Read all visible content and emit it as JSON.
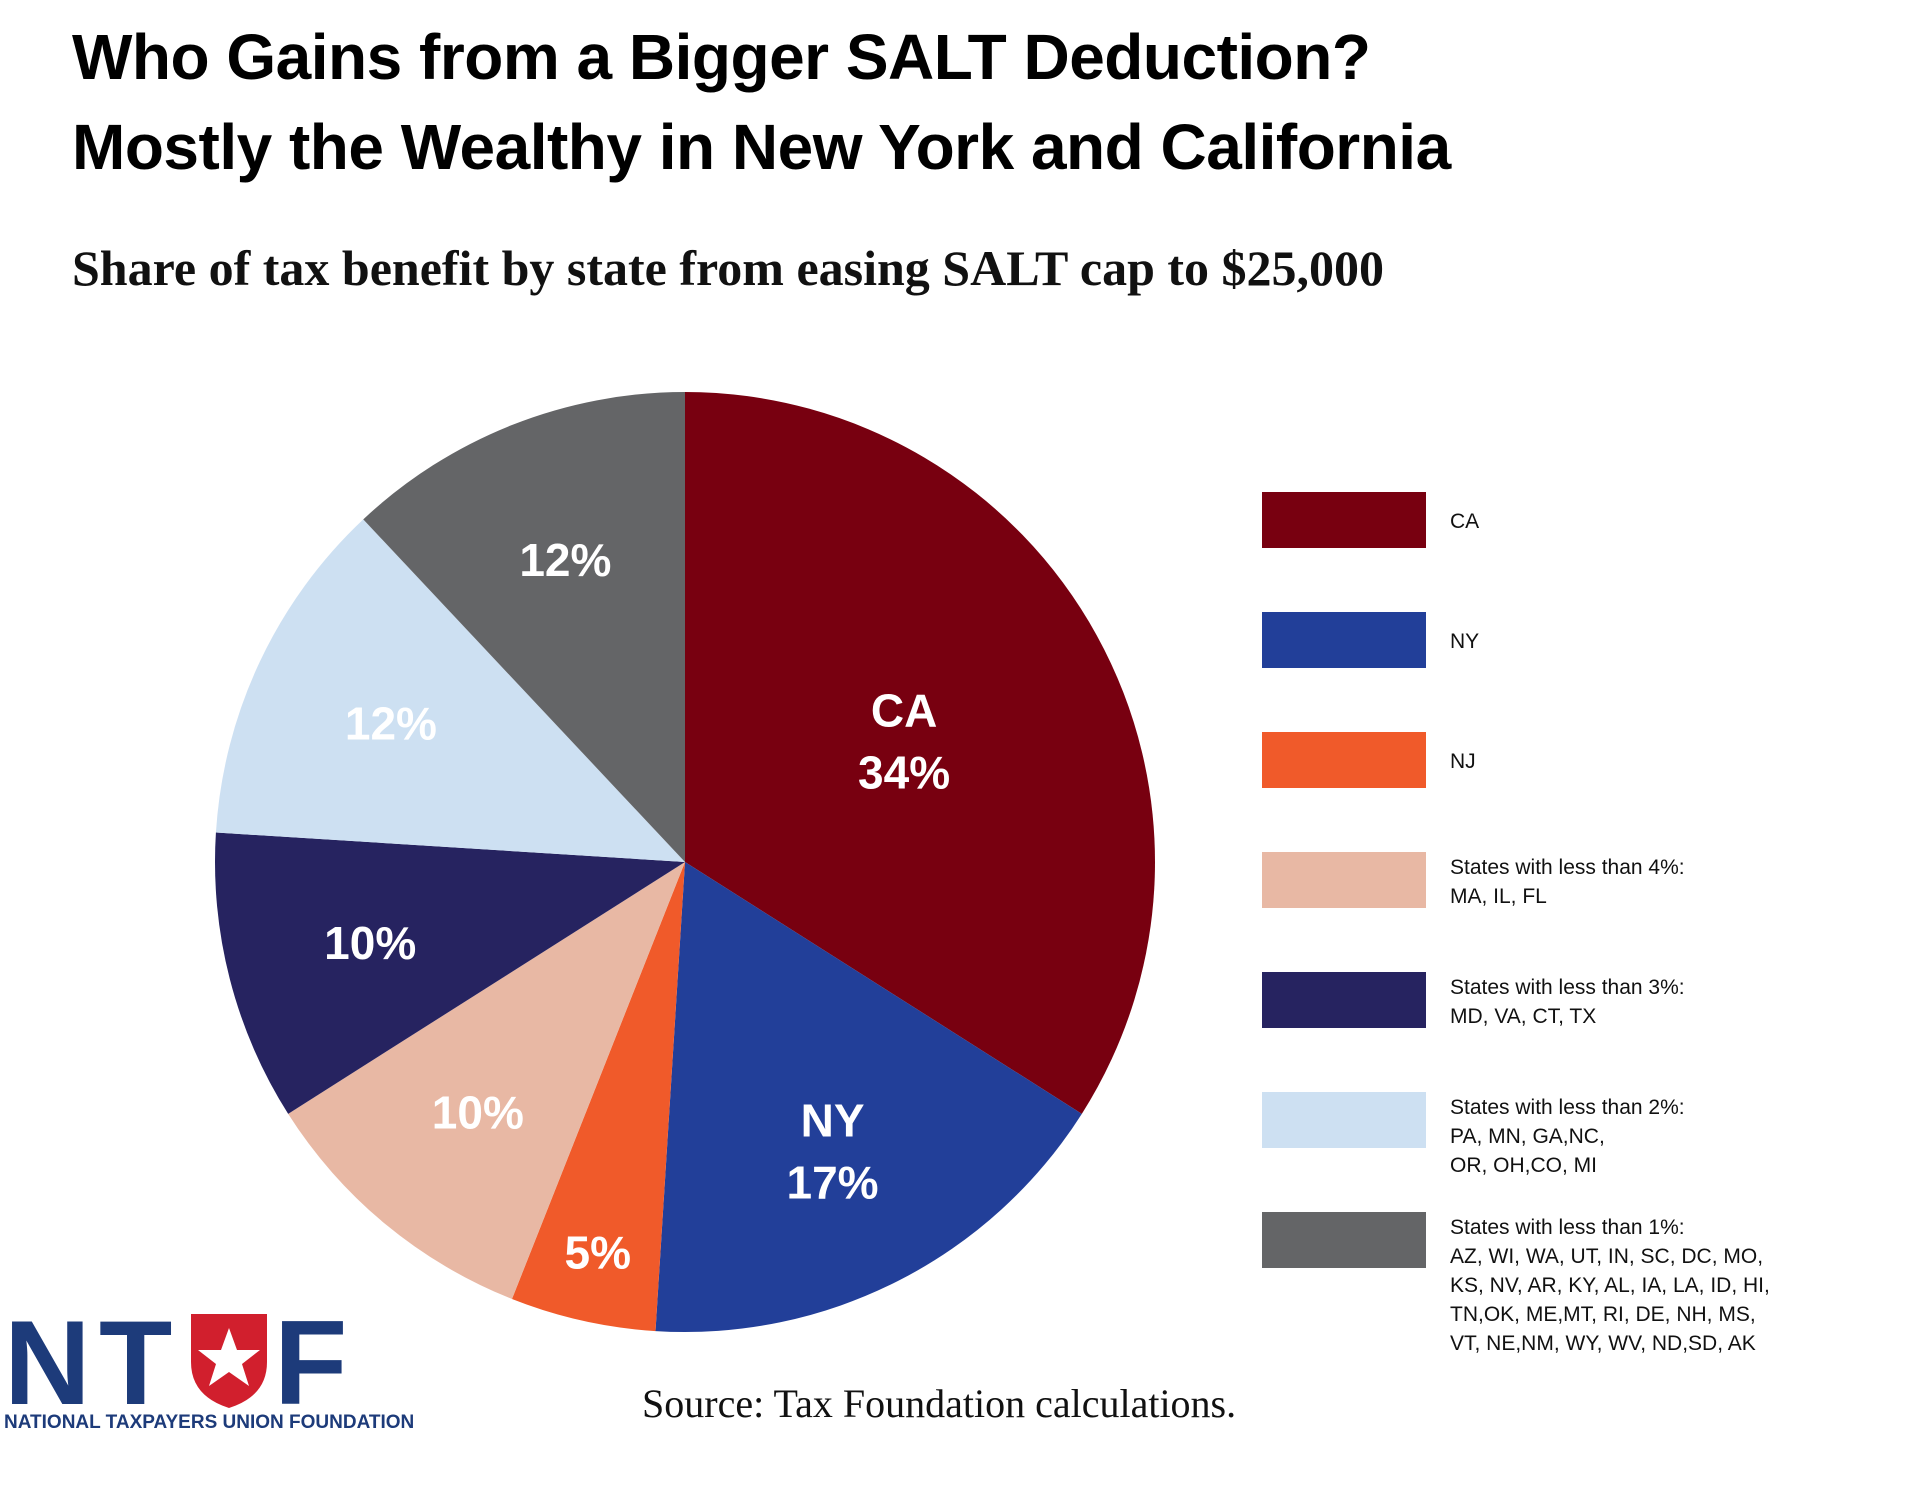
{
  "chart_data": {
    "type": "pie",
    "title_lines": [
      "Who Gains from a Bigger SALT Deduction?",
      "Mostly the Wealthy in New York and California"
    ],
    "subtitle": "Share of tax benefit by state from easing SALT cap to $25,000",
    "slices": [
      {
        "value": 34,
        "slice_label": "CA",
        "pct_label": "34%",
        "color": "#780010",
        "label_color": "#ffffff"
      },
      {
        "value": 17,
        "slice_label": "NY",
        "pct_label": "17%",
        "color": "#223f99",
        "label_color": "#ffffff"
      },
      {
        "value": 5,
        "slice_label": "",
        "pct_label": "5%",
        "color": "#f05a2a",
        "label_color": "#ffffff"
      },
      {
        "value": 10,
        "slice_label": "",
        "pct_label": "10%",
        "color": "#e8b8a4",
        "label_color": "#ffffff"
      },
      {
        "value": 10,
        "slice_label": "",
        "pct_label": "10%",
        "color": "#262360",
        "label_color": "#ffffff"
      },
      {
        "value": 12,
        "slice_label": "",
        "pct_label": "12%",
        "color": "#cde0f2",
        "label_color": "#ffffff"
      },
      {
        "value": 12,
        "slice_label": "",
        "pct_label": "12%",
        "color": "#646567",
        "label_color": "#ffffff"
      }
    ],
    "legend": [
      {
        "color": "#780010",
        "lines": [
          "CA"
        ]
      },
      {
        "color": "#223f99",
        "lines": [
          "NY"
        ]
      },
      {
        "color": "#f05a2a",
        "lines": [
          "NJ"
        ]
      },
      {
        "color": "#e8b8a4",
        "lines": [
          "States with less than 4%:",
          "MA, IL, FL"
        ]
      },
      {
        "color": "#262360",
        "lines": [
          "States with less than 3%:",
          "MD, VA, CT, TX"
        ]
      },
      {
        "color": "#cde0f2",
        "lines": [
          "States with less than 2%:",
          "PA, MN, GA,NC,",
          "OR, OH,CO, MI"
        ]
      },
      {
        "color": "#646567",
        "lines": [
          "States with less than 1%:",
          "AZ, WI, WA, UT, IN, SC, DC, MO,",
          "KS, NV, AR, KY, AL, IA, LA, ID, HI,",
          "TN,OK, ME,MT, RI, DE, NH, MS,",
          "VT, NE,NM, WY, WV, ND,SD, AK"
        ]
      }
    ],
    "legend_placement": "right"
  },
  "source": "Source: Tax Foundation calculations.",
  "logo": {
    "letters": "NT F",
    "name": "NATIONAL TAXPAYERS UNION FOUNDATION",
    "colors": {
      "blue": "#1d3b7a",
      "red": "#d11f2d"
    }
  }
}
